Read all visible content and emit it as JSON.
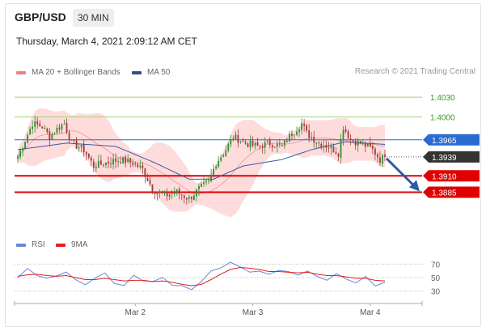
{
  "header": {
    "symbol": "GBP/USD",
    "timeframe": "30 MIN",
    "datetime": "Thursday, March 4, 2021 2:09:12 AM CET"
  },
  "legend_main": [
    {
      "name": "MA 20 + Bollinger Bands",
      "color": "#f08080"
    },
    {
      "name": "MA 50",
      "color": "#2c4e8a"
    }
  ],
  "credit": "Research © 2021 Trading Central",
  "legend_rsi": [
    {
      "name": "RSI",
      "color": "#6a87d8"
    },
    {
      "name": "9MA",
      "color": "#e02020"
    }
  ],
  "colors": {
    "bull": "#2f8f2f",
    "bear": "#a33a3a",
    "band": "#ffd8d8",
    "ma20": "#f4a0a0",
    "ma50": "#3b5aa8",
    "green_line": "#9fd27a",
    "blue_line": "#2b6ad0",
    "red_line": "#e00000",
    "last": "#333333",
    "arrow": "#2f5aa8"
  },
  "chart_data": [
    {
      "type": "candlestick",
      "title": "GBP/USD 30 MIN",
      "ylim": [
        1.3835,
        1.405
      ],
      "x_ticks": [
        "Mar 2",
        "Mar 3",
        "Mar 4"
      ],
      "x_tick_positions": [
        48,
        96,
        144
      ],
      "bar_count": 151,
      "levels": [
        {
          "value": 1.403,
          "label": "1.4030",
          "style": "green"
        },
        {
          "value": 1.4,
          "label": "1.4000",
          "style": "green"
        },
        {
          "value": 1.3965,
          "label": "1.3965",
          "style": "blue"
        },
        {
          "value": 1.3939,
          "label": "1.3939",
          "style": "last"
        },
        {
          "value": 1.391,
          "label": "1.3910",
          "style": "red"
        },
        {
          "value": 1.3885,
          "label": "1.3885",
          "style": "red"
        }
      ],
      "anchors": [
        [
          0,
          1.394
        ],
        [
          3,
          1.3965
        ],
        [
          6,
          1.399
        ],
        [
          10,
          1.3985
        ],
        [
          13,
          1.397
        ],
        [
          17,
          1.3985
        ],
        [
          19,
          1.399
        ],
        [
          22,
          1.396
        ],
        [
          27,
          1.395
        ],
        [
          31,
          1.3925
        ],
        [
          36,
          1.393
        ],
        [
          42,
          1.3935
        ],
        [
          47,
          1.393
        ],
        [
          51,
          1.392
        ],
        [
          55,
          1.389
        ],
        [
          60,
          1.388
        ],
        [
          65,
          1.3885
        ],
        [
          70,
          1.3875
        ],
        [
          74,
          1.389
        ],
        [
          78,
          1.39
        ],
        [
          81,
          1.393
        ],
        [
          85,
          1.395
        ],
        [
          88,
          1.397
        ],
        [
          93,
          1.396
        ],
        [
          98,
          1.3955
        ],
        [
          103,
          1.396
        ],
        [
          108,
          1.3955
        ],
        [
          112,
          1.3975
        ],
        [
          116,
          1.399
        ],
        [
          118,
          1.3975
        ],
        [
          123,
          1.396
        ],
        [
          127,
          1.3955
        ],
        [
          131,
          1.3945
        ],
        [
          133,
          1.3985
        ],
        [
          136,
          1.3965
        ],
        [
          140,
          1.396
        ],
        [
          145,
          1.395
        ],
        [
          148,
          1.3935
        ],
        [
          150,
          1.3939
        ]
      ],
      "ma50": [
        [
          0,
          1.395
        ],
        [
          20,
          1.396
        ],
        [
          40,
          1.3955
        ],
        [
          56,
          1.393
        ],
        [
          70,
          1.3905
        ],
        [
          80,
          1.3905
        ],
        [
          92,
          1.3925
        ],
        [
          108,
          1.3935
        ],
        [
          120,
          1.395
        ],
        [
          134,
          1.3962
        ],
        [
          150,
          1.3958
        ]
      ]
    },
    {
      "type": "line",
      "title": "RSI",
      "ylim": [
        20,
        80
      ],
      "y_ticks": [
        70,
        50,
        30
      ],
      "series": [
        {
          "name": "RSI",
          "values": [
            50,
            62,
            55,
            48,
            52,
            60,
            45,
            40,
            50,
            55,
            43,
            38,
            52,
            47,
            43,
            50,
            40,
            36,
            33,
            45,
            58,
            66,
            72,
            65,
            60,
            58,
            55,
            62,
            57,
            55,
            60,
            50,
            48,
            55,
            47,
            44,
            50,
            38,
            44
          ]
        },
        {
          "name": "9MA",
          "values": [
            52,
            54,
            55,
            53,
            52,
            53,
            50,
            47,
            47,
            49,
            47,
            45,
            46,
            46,
            44,
            45,
            43,
            40,
            38,
            40,
            47,
            55,
            62,
            65,
            64,
            62,
            59,
            59,
            58,
            57,
            58,
            55,
            53,
            53,
            51,
            49,
            49,
            46,
            45
          ]
        }
      ]
    }
  ]
}
